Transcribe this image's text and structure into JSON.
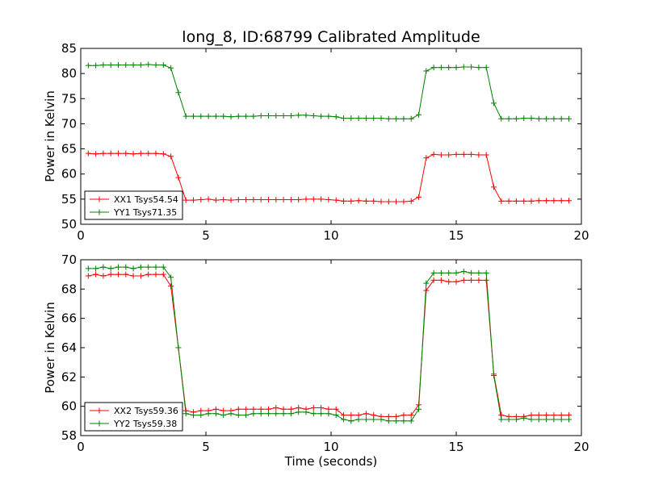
{
  "chart_data": [
    {
      "type": "line",
      "title": "long_8, ID:68799 Calibrated Amplitude",
      "xlabel": "",
      "ylabel": "Power in Kelvin",
      "xlim": [
        0,
        20
      ],
      "ylim": [
        50,
        85
      ],
      "xticks": [
        0,
        5,
        10,
        15,
        20
      ],
      "yticks": [
        50,
        55,
        60,
        65,
        70,
        75,
        80,
        85
      ],
      "grid": false,
      "legend_position": "lower-left",
      "series": [
        {
          "name": "XX1 Tsys54.54",
          "color": "#ff0000",
          "x": [
            0.3,
            0.6,
            0.9,
            1.2,
            1.5,
            1.8,
            2.1,
            2.4,
            2.7,
            3.0,
            3.3,
            3.6,
            3.9,
            4.2,
            4.5,
            4.8,
            5.1,
            5.4,
            5.7,
            6.0,
            6.3,
            6.6,
            6.9,
            7.2,
            7.5,
            7.8,
            8.1,
            8.4,
            8.7,
            9.0,
            9.3,
            9.6,
            9.9,
            10.2,
            10.5,
            10.8,
            11.1,
            11.4,
            11.7,
            12.0,
            12.3,
            12.6,
            12.9,
            13.2,
            13.5,
            13.8,
            14.1,
            14.4,
            14.7,
            15.0,
            15.3,
            15.6,
            15.9,
            16.2,
            16.5,
            16.8,
            17.1,
            17.4,
            17.7,
            18.0,
            18.3,
            18.6,
            18.9,
            19.2,
            19.5
          ],
          "y": [
            64.1,
            64.0,
            64.1,
            64.1,
            64.1,
            64.1,
            64.0,
            64.1,
            64.1,
            64.1,
            64.0,
            63.5,
            59.3,
            54.8,
            54.8,
            54.9,
            55.0,
            54.8,
            54.9,
            54.8,
            54.9,
            54.9,
            54.9,
            54.9,
            54.9,
            54.9,
            54.9,
            54.9,
            54.9,
            55.0,
            55.0,
            55.0,
            54.9,
            54.8,
            54.6,
            54.6,
            54.7,
            54.6,
            54.6,
            54.5,
            54.5,
            54.5,
            54.5,
            54.6,
            55.4,
            63.2,
            63.9,
            63.8,
            63.8,
            63.9,
            63.9,
            63.9,
            63.8,
            63.8,
            57.4,
            54.6,
            54.6,
            54.6,
            54.6,
            54.6,
            54.7,
            54.7,
            54.7,
            54.7,
            54.7
          ]
        },
        {
          "name": "YY1 Tsys71.35",
          "color": "#008000",
          "x": [
            0.3,
            0.6,
            0.9,
            1.2,
            1.5,
            1.8,
            2.1,
            2.4,
            2.7,
            3.0,
            3.3,
            3.6,
            3.9,
            4.2,
            4.5,
            4.8,
            5.1,
            5.4,
            5.7,
            6.0,
            6.3,
            6.6,
            6.9,
            7.2,
            7.5,
            7.8,
            8.1,
            8.4,
            8.7,
            9.0,
            9.3,
            9.6,
            9.9,
            10.2,
            10.5,
            10.8,
            11.1,
            11.4,
            11.7,
            12.0,
            12.3,
            12.6,
            12.9,
            13.2,
            13.5,
            13.8,
            14.1,
            14.4,
            14.7,
            15.0,
            15.3,
            15.6,
            15.9,
            16.2,
            16.5,
            16.8,
            17.1,
            17.4,
            17.7,
            18.0,
            18.3,
            18.6,
            18.9,
            19.2,
            19.5
          ],
          "y": [
            81.6,
            81.6,
            81.7,
            81.7,
            81.7,
            81.7,
            81.7,
            81.7,
            81.8,
            81.7,
            81.7,
            81.1,
            76.2,
            71.5,
            71.5,
            71.5,
            71.5,
            71.5,
            71.5,
            71.4,
            71.5,
            71.5,
            71.5,
            71.6,
            71.6,
            71.6,
            71.6,
            71.6,
            71.7,
            71.7,
            71.6,
            71.5,
            71.5,
            71.4,
            71.1,
            71.1,
            71.1,
            71.1,
            71.1,
            71.1,
            71.0,
            71.0,
            71.0,
            71.0,
            71.8,
            80.5,
            81.2,
            81.2,
            81.2,
            81.2,
            81.3,
            81.3,
            81.2,
            81.2,
            74.1,
            71.0,
            71.0,
            71.0,
            71.1,
            71.1,
            71.0,
            71.0,
            71.0,
            71.0,
            71.0
          ]
        }
      ]
    },
    {
      "type": "line",
      "title": "",
      "xlabel": "Time (seconds)",
      "ylabel": "Power in Kelvin",
      "xlim": [
        0,
        20
      ],
      "ylim": [
        58,
        70
      ],
      "xticks": [
        0,
        5,
        10,
        15,
        20
      ],
      "yticks": [
        58,
        60,
        62,
        64,
        66,
        68,
        70
      ],
      "grid": false,
      "legend_position": "lower-left",
      "series": [
        {
          "name": "XX2 Tsys59.36",
          "color": "#ff0000",
          "x": [
            0.3,
            0.6,
            0.9,
            1.2,
            1.5,
            1.8,
            2.1,
            2.4,
            2.7,
            3.0,
            3.3,
            3.6,
            3.9,
            4.2,
            4.5,
            4.8,
            5.1,
            5.4,
            5.7,
            6.0,
            6.3,
            6.6,
            6.9,
            7.2,
            7.5,
            7.8,
            8.1,
            8.4,
            8.7,
            9.0,
            9.3,
            9.6,
            9.9,
            10.2,
            10.5,
            10.8,
            11.1,
            11.4,
            11.7,
            12.0,
            12.3,
            12.6,
            12.9,
            13.2,
            13.5,
            13.8,
            14.1,
            14.4,
            14.7,
            15.0,
            15.3,
            15.6,
            15.9,
            16.2,
            16.5,
            16.8,
            17.1,
            17.4,
            17.7,
            18.0,
            18.3,
            18.6,
            18.9,
            19.2,
            19.5
          ],
          "y": [
            68.9,
            69.0,
            68.9,
            69.0,
            69.0,
            69.0,
            68.9,
            68.9,
            69.0,
            69.0,
            69.0,
            68.2,
            64.0,
            59.7,
            59.6,
            59.7,
            59.7,
            59.8,
            59.7,
            59.7,
            59.8,
            59.8,
            59.8,
            59.8,
            59.8,
            59.9,
            59.8,
            59.8,
            59.9,
            59.8,
            59.9,
            59.9,
            59.8,
            59.8,
            59.4,
            59.4,
            59.4,
            59.5,
            59.4,
            59.3,
            59.3,
            59.3,
            59.4,
            59.4,
            60.1,
            67.9,
            68.6,
            68.6,
            68.5,
            68.5,
            68.6,
            68.6,
            68.6,
            68.6,
            62.2,
            59.4,
            59.3,
            59.3,
            59.3,
            59.4,
            59.4,
            59.4,
            59.4,
            59.4,
            59.4
          ]
        },
        {
          "name": "YY2 Tsys59.38",
          "color": "#008000",
          "x": [
            0.3,
            0.6,
            0.9,
            1.2,
            1.5,
            1.8,
            2.1,
            2.4,
            2.7,
            3.0,
            3.3,
            3.6,
            3.9,
            4.2,
            4.5,
            4.8,
            5.1,
            5.4,
            5.7,
            6.0,
            6.3,
            6.6,
            6.9,
            7.2,
            7.5,
            7.8,
            8.1,
            8.4,
            8.7,
            9.0,
            9.3,
            9.6,
            9.9,
            10.2,
            10.5,
            10.8,
            11.1,
            11.4,
            11.7,
            12.0,
            12.3,
            12.6,
            12.9,
            13.2,
            13.5,
            13.8,
            14.1,
            14.4,
            14.7,
            15.0,
            15.3,
            15.6,
            15.9,
            16.2,
            16.5,
            16.8,
            17.1,
            17.4,
            17.7,
            18.0,
            18.3,
            18.6,
            18.9,
            19.2,
            19.5
          ],
          "y": [
            69.4,
            69.4,
            69.5,
            69.4,
            69.5,
            69.5,
            69.4,
            69.5,
            69.5,
            69.5,
            69.5,
            68.8,
            64.0,
            59.5,
            59.4,
            59.4,
            59.5,
            59.5,
            59.4,
            59.5,
            59.4,
            59.4,
            59.5,
            59.5,
            59.5,
            59.5,
            59.5,
            59.5,
            59.6,
            59.6,
            59.5,
            59.5,
            59.5,
            59.4,
            59.1,
            59.0,
            59.1,
            59.1,
            59.1,
            59.1,
            59.0,
            59.0,
            59.0,
            59.0,
            59.8,
            68.4,
            69.1,
            69.1,
            69.1,
            69.1,
            69.2,
            69.1,
            69.1,
            69.1,
            62.1,
            59.1,
            59.1,
            59.1,
            59.2,
            59.1,
            59.1,
            59.1,
            59.1,
            59.1,
            59.1
          ]
        }
      ]
    }
  ]
}
